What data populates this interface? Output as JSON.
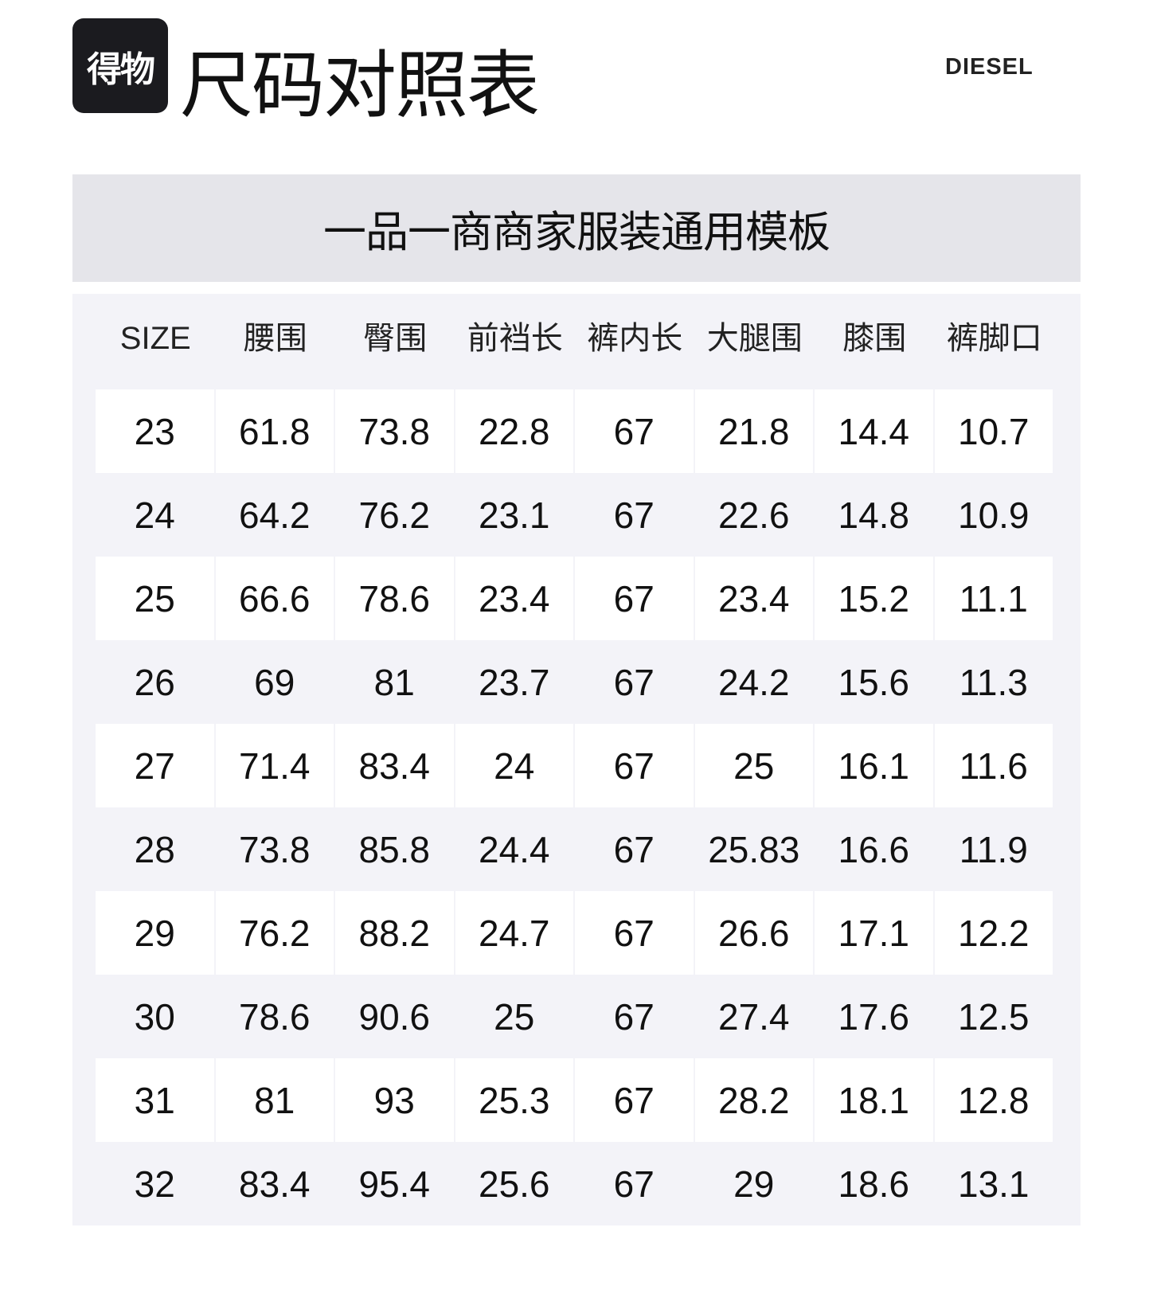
{
  "logo": {
    "text": "得物"
  },
  "title": "尺码对照表",
  "brand": "DIESEL",
  "banner": "一品一商商家服装通用模板",
  "table": {
    "headers": [
      "SIZE",
      "腰围",
      "臀围",
      "前裆长",
      "裤内长",
      "大腿围",
      "膝围",
      "裤脚口"
    ],
    "rows": [
      [
        "23",
        "61.8",
        "73.8",
        "22.8",
        "67",
        "21.8",
        "14.4",
        "10.7"
      ],
      [
        "24",
        "64.2",
        "76.2",
        "23.1",
        "67",
        "22.6",
        "14.8",
        "10.9"
      ],
      [
        "25",
        "66.6",
        "78.6",
        "23.4",
        "67",
        "23.4",
        "15.2",
        "11.1"
      ],
      [
        "26",
        "69",
        "81",
        "23.7",
        "67",
        "24.2",
        "15.6",
        "11.3"
      ],
      [
        "27",
        "71.4",
        "83.4",
        "24",
        "67",
        "25",
        "16.1",
        "11.6"
      ],
      [
        "28",
        "73.8",
        "85.8",
        "24.4",
        "67",
        "25.83",
        "16.6",
        "11.9"
      ],
      [
        "29",
        "76.2",
        "88.2",
        "24.7",
        "67",
        "26.6",
        "17.1",
        "12.2"
      ],
      [
        "30",
        "78.6",
        "90.6",
        "25",
        "67",
        "27.4",
        "17.6",
        "12.5"
      ],
      [
        "31",
        "81",
        "93",
        "25.3",
        "67",
        "28.2",
        "18.1",
        "12.8"
      ],
      [
        "32",
        "83.4",
        "95.4",
        "25.6",
        "67",
        "29",
        "18.6",
        "13.1"
      ]
    ]
  }
}
